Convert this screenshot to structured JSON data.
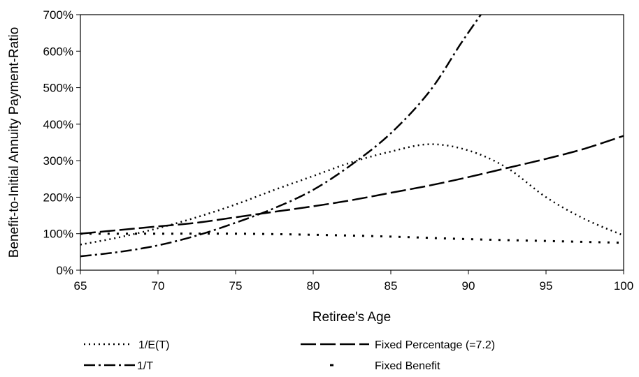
{
  "chart_data": {
    "type": "line",
    "title": "",
    "xlabel": "Retiree's Age",
    "ylabel": "Benefit-to-Initial Annuity Payment-Ratio",
    "xlim": [
      65,
      100
    ],
    "ylim": [
      0,
      700
    ],
    "xticks": [
      65,
      70,
      75,
      80,
      85,
      90,
      95,
      100
    ],
    "yticks": [
      0,
      100,
      200,
      300,
      400,
      500,
      600,
      700
    ],
    "ytick_labels": [
      "0%",
      "100%",
      "200%",
      "300%",
      "400%",
      "500%",
      "600%",
      "700%"
    ],
    "grid": false,
    "legend_position": "bottom",
    "series": [
      {
        "name": "1/E(T)",
        "line_style": "dotted",
        "x": [
          65,
          67.5,
          70,
          72.5,
          75,
          77.5,
          80,
          82.5,
          85,
          87.5,
          90,
          92.5,
          95,
          97.5,
          100
        ],
        "y": [
          70,
          90,
          115,
          145,
          180,
          220,
          258,
          296,
          325,
          345,
          328,
          280,
          200,
          140,
          95
        ]
      },
      {
        "name": "Fixed Percentage (=7.2)",
        "line_style": "dashed",
        "x": [
          65,
          67.5,
          70,
          72.5,
          75,
          77.5,
          80,
          82.5,
          85,
          87.5,
          90,
          92.5,
          95,
          97.5,
          100
        ],
        "y": [
          100,
          110,
          120,
          130,
          145,
          160,
          175,
          192,
          212,
          232,
          255,
          280,
          305,
          333,
          368
        ]
      },
      {
        "name": "1/T",
        "line_style": "dashdot",
        "x": [
          65,
          67.5,
          70,
          72.5,
          75,
          77.5,
          80,
          82.5,
          85,
          87.5,
          89.5,
          90.8
        ],
        "y": [
          38,
          50,
          68,
          95,
          130,
          170,
          220,
          290,
          375,
          490,
          620,
          700
        ]
      },
      {
        "name": "Fixed Benefit",
        "line_style": "sparse-dotted",
        "x": [
          65,
          70,
          75,
          80,
          85,
          90,
          95,
          100
        ],
        "y": [
          100,
          100,
          100,
          97,
          92,
          85,
          80,
          75
        ]
      }
    ]
  },
  "legend": {
    "items": [
      {
        "label": "1/E(T)",
        "style": "dotted"
      },
      {
        "label": "Fixed Percentage (=7.2)",
        "style": "dashed"
      },
      {
        "label": "1/T",
        "style": "dashdot"
      },
      {
        "label": "Fixed Benefit",
        "style": "sparse-dotted"
      }
    ]
  }
}
